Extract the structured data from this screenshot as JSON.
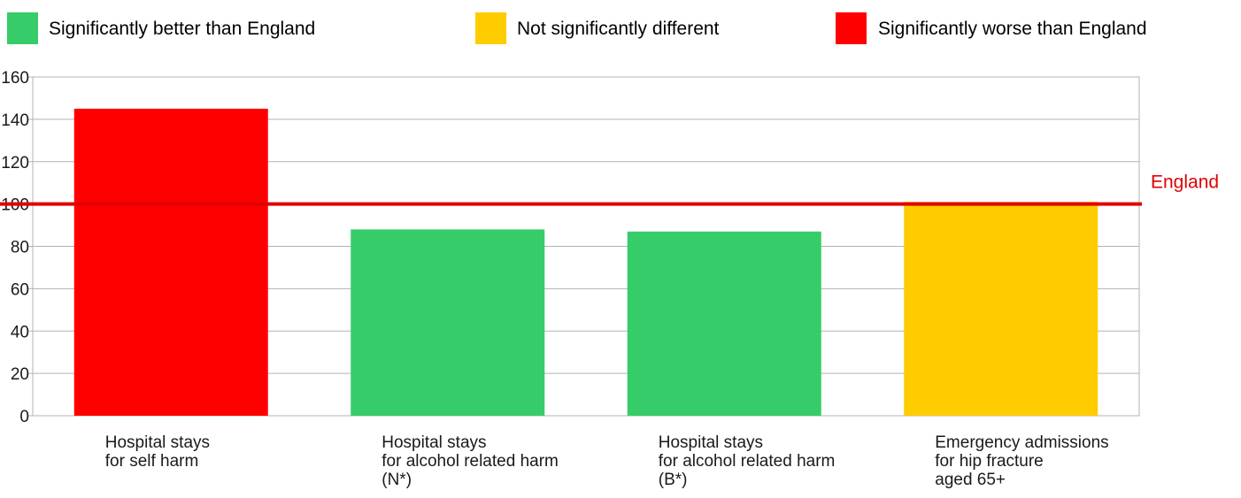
{
  "legend": [
    {
      "label": "Significantly better than England",
      "color": "#36cc69"
    },
    {
      "label": "Not significantly different",
      "color": "#ffcc00"
    },
    {
      "label": "Significantly worse than England",
      "color": "#ff0000"
    }
  ],
  "chart_data": {
    "type": "bar",
    "title": "",
    "xlabel": "",
    "ylabel": "",
    "ylim": [
      0,
      160
    ],
    "yticks": [
      "0",
      "20",
      "40",
      "60",
      "80",
      "100",
      "120",
      "140",
      "160"
    ],
    "grid": true,
    "legend_position": "top",
    "categories": [
      [
        "Hospital stays",
        "for self harm"
      ],
      [
        "Hospital stays",
        "for alcohol related harm",
        "(N*)"
      ],
      [
        "Hospital stays",
        "for alcohol related harm",
        "(B*)"
      ],
      [
        "Emergency admissions",
        "for hip fracture",
        "aged 65+"
      ]
    ],
    "values": [
      145,
      88,
      87,
      101
    ],
    "bar_colors": [
      "#ff0000",
      "#36cc69",
      "#36cc69",
      "#ffcc00"
    ],
    "reference_line": {
      "label": "England",
      "value": 100,
      "color": "#e00000"
    }
  }
}
